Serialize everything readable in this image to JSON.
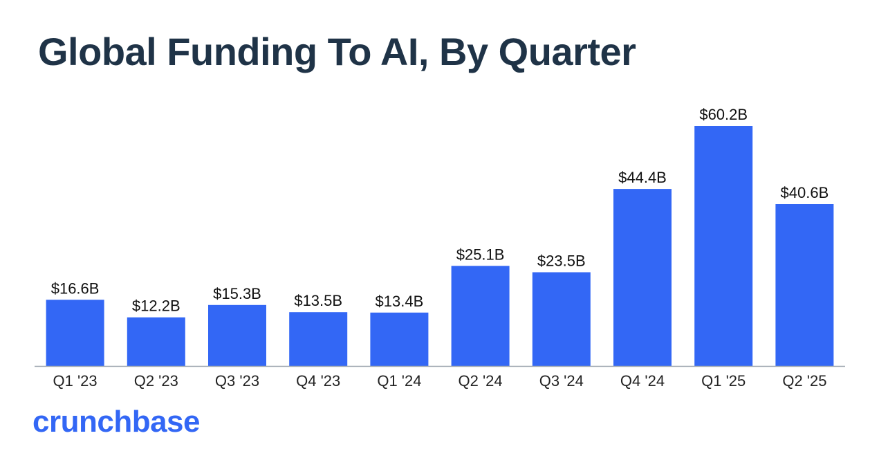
{
  "title": "Global Funding To AI, By Quarter",
  "brand": {
    "name": "crunchbase",
    "color": "#3367f5"
  },
  "colors": {
    "bar": "#3367f5",
    "axis": "#9aa3ad",
    "title": "#1f3347"
  },
  "chart_data": {
    "type": "bar",
    "title": "Global Funding To AI, By Quarter",
    "xlabel": "",
    "ylabel": "",
    "unit": "$B",
    "categories": [
      "Q1 '23",
      "Q2 '23",
      "Q3 '23",
      "Q4 '23",
      "Q1 '24",
      "Q2 '24",
      "Q3 '24",
      "Q4 '24",
      "Q1 '25",
      "Q2 '25"
    ],
    "values": [
      16.6,
      12.2,
      15.3,
      13.5,
      13.4,
      25.1,
      23.5,
      44.4,
      60.2,
      40.6
    ],
    "data_labels": [
      "$16.6B",
      "$12.2B",
      "$15.3B",
      "$13.5B",
      "$13.4B",
      "$25.1B",
      "$23.5B",
      "$44.4B",
      "$60.2B",
      "$40.6B"
    ],
    "ylim": [
      0,
      60.2
    ],
    "grid": false,
    "legend": "none"
  }
}
